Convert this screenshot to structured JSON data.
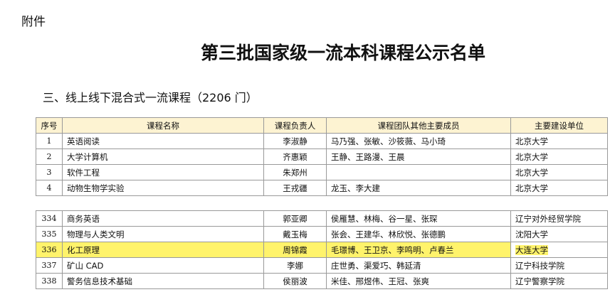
{
  "attachment_label": "附件",
  "title": "第三批国家级一流本科课程公示名单",
  "section": "三、线上线下混合式一流课程（2206 门）",
  "headers": [
    "序号",
    "课程名称",
    "课程负责人",
    "课程团队其他主要成员",
    "主要建设单位"
  ],
  "rows_top": [
    [
      "1",
      "英语阅读",
      "李淑静",
      "马乃强、张敏、沙筱薇、马小琦",
      "北京大学"
    ],
    [
      "2",
      "大学计算机",
      "齐惠颖",
      "王静、王路漫、王晨",
      "北京大学"
    ],
    [
      "3",
      "软件工程",
      "朱郑州",
      "",
      "北京大学"
    ],
    [
      "4",
      "动物生物学实验",
      "王戎疆",
      "龙玉、李大建",
      "北京大学"
    ]
  ],
  "rows_bottom": [
    [
      "334",
      "商务英语",
      "郭亚卿",
      "侯雁慧、林梅、谷一星、张琛",
      "辽宁对外经贸学院"
    ],
    [
      "335",
      "物理与人类文明",
      "戴玉梅",
      "张会、王建华、林欣悦、张德鹏",
      "沈阳大学"
    ],
    [
      "336",
      "化工原理",
      "周锦霞",
      "毛璟博、王卫京、李鸣明、卢春兰",
      "大连大学"
    ],
    [
      "337",
      "矿山 CAD",
      "李娜",
      "庄世勇、渠爱巧、韩延清",
      "辽宁科技学院"
    ],
    [
      "338",
      "警务信息技术基础",
      "侯丽波",
      "米佳、邢煜伟、王冠、张爽",
      "辽宁警察学院"
    ]
  ],
  "highlight_color": "#fff36b",
  "header_color": "#fdf3d2"
}
